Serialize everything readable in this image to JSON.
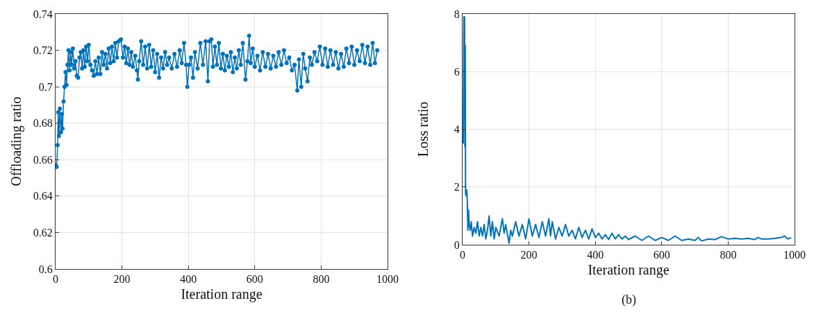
{
  "chart_data": [
    {
      "type": "line",
      "xlabel": "Iteration range",
      "ylabel": "Offloading ratio",
      "xlim": [
        0,
        1000
      ],
      "xticks": [
        0,
        200,
        400,
        600,
        800,
        1000
      ],
      "ylim": [
        0.6,
        0.74
      ],
      "yticks": [
        0.6,
        0.62,
        0.64,
        0.66,
        0.68,
        0.7,
        0.72,
        0.74
      ],
      "grid": true,
      "marker": "circle",
      "line_style": "solid",
      "x": [
        0,
        3,
        6,
        8,
        10,
        13,
        16,
        19,
        21,
        24,
        27,
        30,
        33,
        36,
        39,
        42,
        45,
        48,
        52,
        56,
        60,
        64,
        68,
        72,
        76,
        80,
        84,
        88,
        92,
        96,
        100,
        105,
        110,
        115,
        120,
        125,
        130,
        135,
        140,
        145,
        150,
        155,
        160,
        165,
        170,
        175,
        180,
        185,
        190,
        197,
        203,
        208,
        213,
        218,
        223,
        228,
        233,
        240,
        245,
        248,
        252,
        258,
        264,
        270,
        276,
        282,
        288,
        294,
        300,
        306,
        312,
        318,
        324,
        330,
        336,
        342,
        350,
        358,
        366,
        374,
        380,
        387,
        393,
        397,
        402,
        408,
        414,
        420,
        428,
        436,
        444,
        452,
        459,
        464,
        469,
        474,
        480,
        486,
        492,
        498,
        504,
        510,
        516,
        522,
        528,
        534,
        540,
        546,
        552,
        558,
        564,
        572,
        578,
        583,
        588,
        594,
        600,
        608,
        616,
        624,
        632,
        640,
        648,
        656,
        664,
        672,
        680,
        688,
        696,
        704,
        712,
        720,
        728,
        733,
        740,
        746,
        752,
        759,
        766,
        772,
        780,
        788,
        796,
        804,
        812,
        820,
        828,
        836,
        844,
        852,
        860,
        868,
        876,
        884,
        892,
        900,
        908,
        916,
        924,
        932,
        940,
        948,
        955,
        962,
        969
      ],
      "series": [
        {
          "color": "#0072bd",
          "values": [
            0.657,
            0.656,
            0.668,
            0.686,
            0.673,
            0.688,
            0.675,
            0.685,
            0.677,
            0.692,
            0.7,
            0.708,
            0.701,
            0.712,
            0.72,
            0.709,
            0.719,
            0.712,
            0.721,
            0.71,
            0.714,
            0.706,
            0.705,
            0.716,
            0.719,
            0.71,
            0.72,
            0.711,
            0.722,
            0.714,
            0.723,
            0.712,
            0.709,
            0.706,
            0.714,
            0.707,
            0.716,
            0.707,
            0.719,
            0.712,
            0.718,
            0.71,
            0.721,
            0.713,
            0.722,
            0.714,
            0.724,
            0.716,
            0.725,
            0.726,
            0.716,
            0.722,
            0.713,
            0.721,
            0.712,
            0.719,
            0.711,
            0.717,
            0.709,
            0.704,
            0.714,
            0.725,
            0.712,
            0.722,
            0.71,
            0.723,
            0.711,
            0.72,
            0.708,
            0.718,
            0.705,
            0.716,
            0.71,
            0.719,
            0.712,
            0.716,
            0.71,
            0.718,
            0.711,
            0.72,
            0.713,
            0.724,
            0.712,
            0.7,
            0.712,
            0.716,
            0.705,
            0.719,
            0.71,
            0.724,
            0.712,
            0.725,
            0.703,
            0.725,
            0.726,
            0.711,
            0.722,
            0.712,
            0.724,
            0.71,
            0.718,
            0.709,
            0.717,
            0.711,
            0.719,
            0.708,
            0.716,
            0.71,
            0.72,
            0.712,
            0.724,
            0.704,
            0.714,
            0.728,
            0.713,
            0.721,
            0.711,
            0.717,
            0.709,
            0.719,
            0.711,
            0.718,
            0.71,
            0.717,
            0.711,
            0.719,
            0.712,
            0.72,
            0.713,
            0.716,
            0.709,
            0.712,
            0.698,
            0.715,
            0.7,
            0.718,
            0.71,
            0.703,
            0.716,
            0.712,
            0.719,
            0.714,
            0.722,
            0.712,
            0.721,
            0.711,
            0.72,
            0.712,
            0.719,
            0.71,
            0.718,
            0.711,
            0.721,
            0.713,
            0.722,
            0.712,
            0.72,
            0.714,
            0.723,
            0.713,
            0.722,
            0.712,
            0.724,
            0.713,
            0.72
          ]
        }
      ]
    },
    {
      "type": "line",
      "xlabel": "Iteration range",
      "ylabel": "Loss ratio",
      "xlim": [
        0,
        1000
      ],
      "xticks": [
        0,
        200,
        400,
        600,
        800,
        1000
      ],
      "ylim": [
        0,
        8
      ],
      "yticks": [
        0,
        2,
        4,
        6,
        8
      ],
      "grid": true,
      "marker": "none",
      "line_style": "solid",
      "annotations": [
        "(b)"
      ],
      "x": [
        2,
        4,
        5,
        6,
        7,
        8,
        9,
        10,
        12,
        14,
        16,
        18,
        20,
        23,
        26,
        30,
        35,
        40,
        45,
        50,
        55,
        60,
        65,
        70,
        75,
        80,
        85,
        90,
        95,
        100,
        110,
        120,
        125,
        130,
        140,
        145,
        150,
        160,
        170,
        180,
        190,
        200,
        210,
        220,
        230,
        240,
        250,
        260,
        265,
        270,
        280,
        290,
        300,
        310,
        320,
        330,
        340,
        350,
        360,
        370,
        380,
        390,
        400,
        410,
        420,
        430,
        440,
        450,
        460,
        470,
        480,
        490,
        500,
        520,
        540,
        560,
        580,
        600,
        620,
        640,
        660,
        680,
        700,
        710,
        720,
        740,
        760,
        780,
        800,
        820,
        840,
        860,
        880,
        890,
        900,
        920,
        940,
        960,
        970,
        980,
        990
      ],
      "series": [
        {
          "color": "#0072bd",
          "values": [
            3.5,
            7.9,
            5.0,
            7.9,
            3.4,
            6.9,
            1.8,
            1.7,
            1.9,
            1.6,
            0.5,
            1.2,
            0.7,
            0.5,
            0.8,
            0.3,
            0.6,
            0.4,
            0.8,
            0.3,
            0.6,
            0.3,
            0.7,
            0.2,
            0.5,
            1.0,
            0.3,
            0.8,
            0.2,
            0.6,
            0.3,
            0.9,
            0.4,
            0.7,
            0.05,
            0.5,
            0.3,
            0.8,
            0.3,
            0.7,
            0.2,
            0.9,
            0.3,
            0.7,
            0.25,
            0.8,
            0.3,
            0.9,
            0.3,
            0.8,
            0.2,
            0.6,
            0.3,
            0.7,
            0.3,
            0.5,
            0.2,
            0.6,
            0.25,
            0.5,
            0.2,
            0.55,
            0.25,
            0.4,
            0.2,
            0.35,
            0.18,
            0.4,
            0.2,
            0.35,
            0.2,
            0.3,
            0.18,
            0.3,
            0.15,
            0.3,
            0.15,
            0.25,
            0.15,
            0.3,
            0.15,
            0.2,
            0.15,
            0.25,
            0.13,
            0.2,
            0.18,
            0.28,
            0.2,
            0.22,
            0.2,
            0.22,
            0.18,
            0.25,
            0.2,
            0.2,
            0.22,
            0.25,
            0.3,
            0.2,
            0.25
          ]
        }
      ]
    }
  ]
}
